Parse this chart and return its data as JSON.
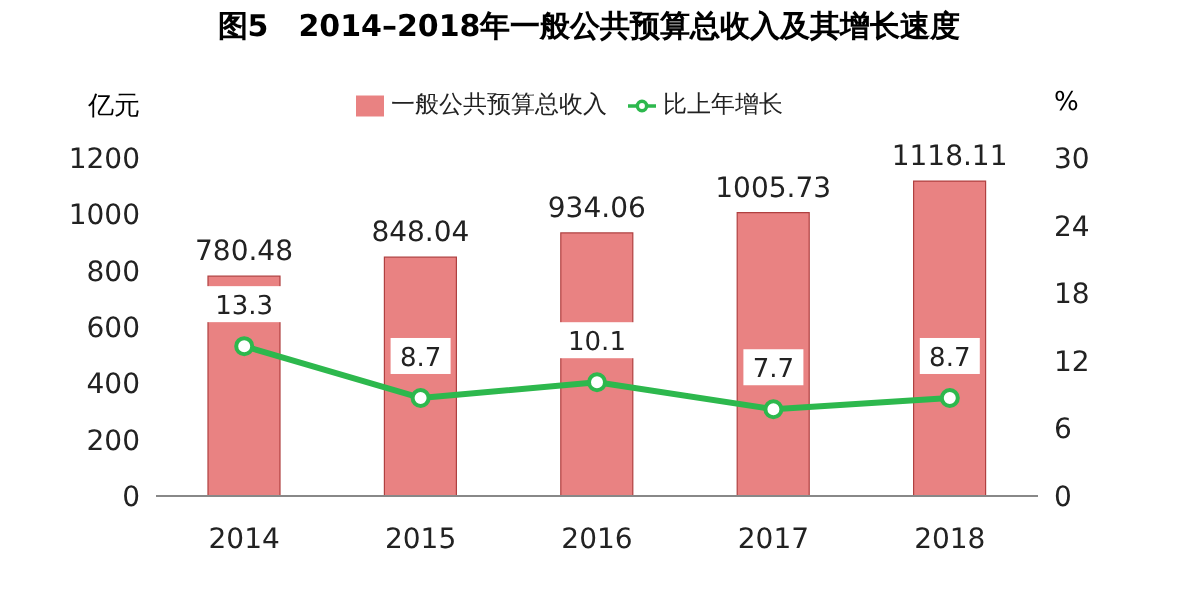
{
  "chart_data": {
    "type": "bar",
    "title": "图5　2014–2018年一般公共预算总收入及其增长速度",
    "ylabel": "亿元",
    "y2label": "%",
    "categories": [
      "2014",
      "2015",
      "2016",
      "2017",
      "2018"
    ],
    "series": [
      {
        "name": "一般公共预算总收入",
        "color": "#e98282",
        "values": [
          780.48,
          848.04,
          934.06,
          1005.73,
          1118.11
        ]
      },
      {
        "name": "比上年增长",
        "type": "line",
        "axis": "y2",
        "color": "#2db84d",
        "marker": "circle",
        "values": [
          13.3,
          8.7,
          10.1,
          7.7,
          8.7
        ]
      }
    ],
    "ylim": [
      0,
      1200
    ],
    "yticks": [
      0,
      200,
      400,
      600,
      800,
      1000,
      1200
    ],
    "y2lim": [
      0,
      30
    ],
    "y2ticks": [
      0,
      6,
      12,
      18,
      24,
      30
    ],
    "data_labels": true,
    "legend": "top",
    "grid": false
  }
}
